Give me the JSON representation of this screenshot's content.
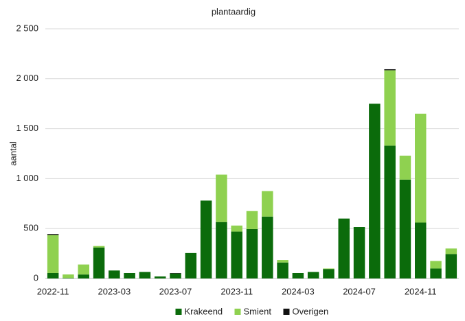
{
  "chart_data": {
    "type": "stacked_bar",
    "title": "plantaardig",
    "y_label": "aantal",
    "categories": [
      "2022-11",
      null,
      null,
      null,
      "2023-03",
      null,
      null,
      null,
      "2023-07",
      null,
      null,
      null,
      "2023-11",
      null,
      null,
      null,
      "2024-03",
      null,
      null,
      null,
      "2024-07",
      null,
      null,
      null,
      "2024-11",
      null,
      null
    ],
    "series": [
      {
        "name": "Krakeend",
        "color": "#0b6b0b",
        "values": [
          55,
          5,
          40,
          310,
          80,
          55,
          65,
          20,
          50,
          255,
          780,
          565,
          470,
          495,
          620,
          160,
          55,
          65,
          95,
          600,
          515,
          1750,
          1330,
          990,
          560,
          100,
          245
        ]
      },
      {
        "name": "Smient",
        "color": "#8fd150",
        "values": [
          380,
          35,
          100,
          15,
          0,
          0,
          0,
          0,
          0,
          0,
          0,
          475,
          60,
          180,
          255,
          25,
          0,
          0,
          5,
          0,
          0,
          0,
          755,
          240,
          1090,
          75,
          55
        ]
      },
      {
        "name": "Overigen",
        "color": "#111111",
        "values": [
          10,
          0,
          0,
          0,
          0,
          0,
          0,
          0,
          5,
          0,
          0,
          0,
          0,
          0,
          0,
          0,
          0,
          0,
          0,
          0,
          0,
          0,
          10,
          0,
          0,
          0,
          0
        ]
      }
    ],
    "ylim": [
      0,
      2500
    ],
    "yticks": [
      0,
      500,
      {
        "value": 1000,
        "label": "1 000"
      },
      {
        "value": 1500,
        "label": "1 500"
      },
      {
        "value": 2000,
        "label": "2 000"
      },
      {
        "value": 2500,
        "label": "2 500"
      }
    ],
    "grid": true,
    "legend": "bottom"
  }
}
